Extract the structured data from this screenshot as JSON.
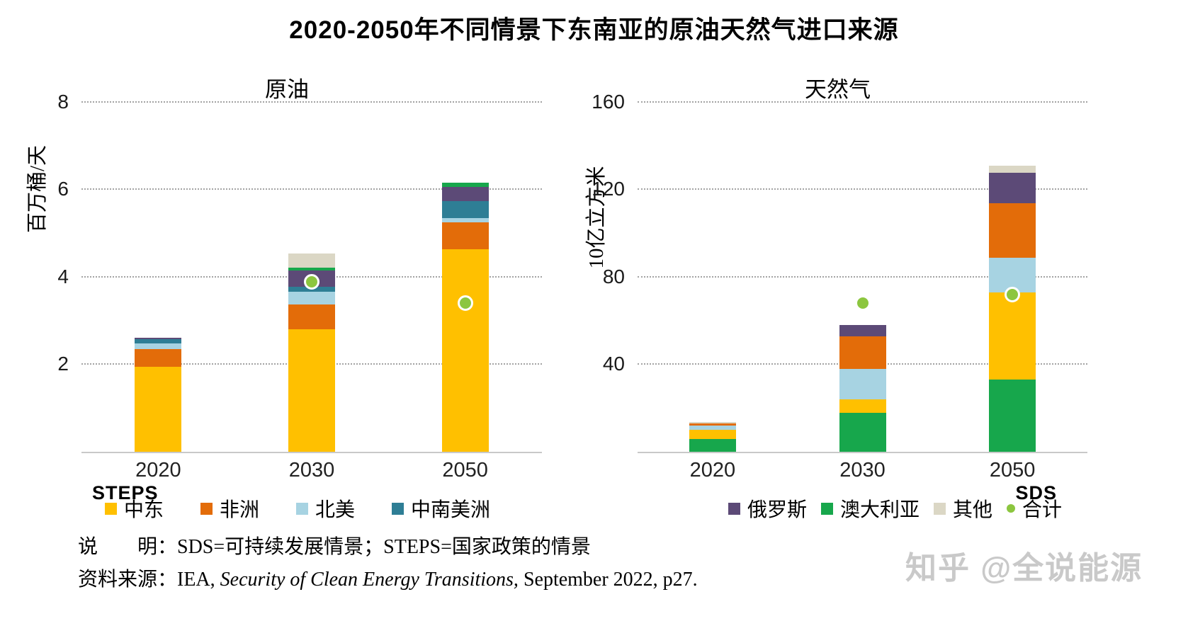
{
  "title": "2020-2050年不同情景下东南亚的原油天然气进口来源",
  "colors": {
    "middle_east": "#FFC000",
    "africa": "#E36C09",
    "north_america": "#A7D3E2",
    "central_south_america": "#2E7E95",
    "russia": "#5C4A77",
    "australia": "#17A74C",
    "other": "#DBD7C5",
    "total": "#8CC63F",
    "grid": "#8D8D8D",
    "axis": "#C9C9C9"
  },
  "chart_data": [
    {
      "type": "bar",
      "title": "原油",
      "ylabel": "百万桶/天",
      "ylim": [
        0,
        8
      ],
      "yticks": [
        2,
        4,
        6,
        8
      ],
      "grid": true,
      "scenario_label": "STEPS",
      "categories": [
        "2020",
        "2030",
        "2050"
      ],
      "series": [
        {
          "name": "中东",
          "key": "middle_east",
          "values": [
            1.95,
            2.8,
            4.64
          ]
        },
        {
          "name": "非洲",
          "key": "africa",
          "values": [
            0.4,
            0.58,
            0.62
          ]
        },
        {
          "name": "北美",
          "key": "north_america",
          "values": [
            0.13,
            0.28,
            0.1
          ]
        },
        {
          "name": "中南美洲",
          "key": "central_south_america",
          "values": [
            0.1,
            0.12,
            0.38
          ]
        },
        {
          "name": "俄罗斯",
          "key": "russia",
          "values": [
            0.04,
            0.38,
            0.33
          ]
        },
        {
          "name": "澳大利亚",
          "key": "australia",
          "values": [
            0,
            0.06,
            0.1
          ]
        },
        {
          "name": "其他",
          "key": "other",
          "values": [
            0,
            0.32,
            0
          ]
        }
      ],
      "dots": {
        "name": "合计",
        "key": "total",
        "values": [
          null,
          3.9,
          3.4
        ]
      }
    },
    {
      "type": "bar",
      "title": "天然气",
      "ylabel": "10亿立方米",
      "ylim": [
        0,
        160
      ],
      "yticks": [
        40,
        80,
        120,
        160
      ],
      "grid": true,
      "scenario_label": "SDS",
      "categories": [
        "2020",
        "2030",
        "2050"
      ],
      "series": [
        {
          "name": "澳大利亚",
          "key": "australia",
          "values": [
            6,
            18,
            33
          ]
        },
        {
          "name": "中东",
          "key": "middle_east",
          "values": [
            4,
            6,
            40
          ]
        },
        {
          "name": "北美",
          "key": "north_america",
          "values": [
            2,
            14,
            16
          ]
        },
        {
          "name": "非洲",
          "key": "africa",
          "values": [
            1,
            15,
            25
          ]
        },
        {
          "name": "俄罗斯",
          "key": "russia",
          "values": [
            0,
            5,
            14
          ]
        },
        {
          "name": "其他",
          "key": "other",
          "values": [
            0.5,
            0,
            3
          ]
        }
      ],
      "dots": {
        "name": "合计",
        "key": "total",
        "values": [
          null,
          68,
          72
        ]
      }
    }
  ],
  "legend": {
    "left": [
      {
        "label": "中东",
        "key": "middle_east",
        "shape": "square"
      },
      {
        "label": "非洲",
        "key": "africa",
        "shape": "square"
      },
      {
        "label": "北美",
        "key": "north_america",
        "shape": "square"
      },
      {
        "label": "中南美洲",
        "key": "central_south_america",
        "shape": "square"
      }
    ],
    "right": [
      {
        "label": "俄罗斯",
        "key": "russia",
        "shape": "square"
      },
      {
        "label": "澳大利亚",
        "key": "australia",
        "shape": "square"
      },
      {
        "label": "其他",
        "key": "other",
        "shape": "square"
      },
      {
        "label": "合计",
        "key": "total",
        "shape": "dot"
      }
    ]
  },
  "notes": {
    "explanation": "说　　明：SDS=可持续发展情景；STEPS=国家政策的情景",
    "source_prefix": "资料来源：IEA, ",
    "source_italic": "Security of Clean Energy Transitions,",
    "source_suffix": " September 2022, p27."
  },
  "watermark": "知乎 @全说能源"
}
